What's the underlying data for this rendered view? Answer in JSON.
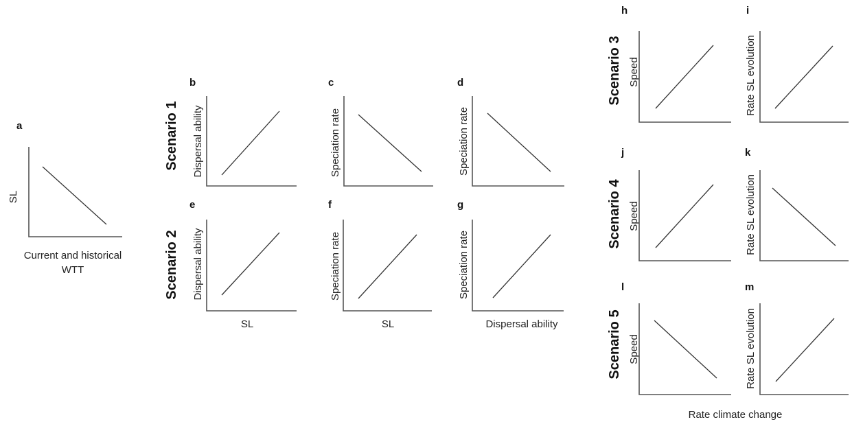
{
  "panels": [
    {
      "id": "a",
      "label": "a",
      "ylabel": "SL",
      "trend": "decreasing"
    },
    {
      "id": "b",
      "label": "b",
      "ylabel": "Dispersal ability",
      "trend": "increasing"
    },
    {
      "id": "c",
      "label": "c",
      "ylabel": "Speciation rate",
      "trend": "decreasing"
    },
    {
      "id": "d",
      "label": "d",
      "ylabel": "Speciation rate",
      "trend": "decreasing"
    },
    {
      "id": "e",
      "label": "e",
      "ylabel": "Dispersal ability",
      "trend": "increasing"
    },
    {
      "id": "f",
      "label": "f",
      "ylabel": "Speciation rate",
      "trend": "increasing"
    },
    {
      "id": "g",
      "label": "g",
      "ylabel": "Speciation rate",
      "trend": "increasing"
    },
    {
      "id": "h",
      "label": "h",
      "ylabel": "Speed",
      "trend": "increasing"
    },
    {
      "id": "i",
      "label": "i",
      "ylabel": "Rate SL evolution",
      "trend": "increasing"
    },
    {
      "id": "j",
      "label": "j",
      "ylabel": "Speed",
      "trend": "increasing"
    },
    {
      "id": "k",
      "label": "k",
      "ylabel": "Rate SL evolution",
      "trend": "decreasing"
    },
    {
      "id": "l",
      "label": "l",
      "ylabel": "Speed",
      "trend": "decreasing"
    },
    {
      "id": "m",
      "label": "m",
      "ylabel": "Rate SL evolution",
      "trend": "increasing"
    }
  ],
  "scenarios": [
    "Scenario 1",
    "Scenario 2",
    "Scenario 3",
    "Scenario 4",
    "Scenario 5"
  ],
  "xlabels": {
    "a_line1": "Current and historical",
    "a_line2": "WTT",
    "sl_left": "SL",
    "sl_right": "SL",
    "dispersal": "Dispersal ability",
    "climate": "Rate climate change"
  }
}
